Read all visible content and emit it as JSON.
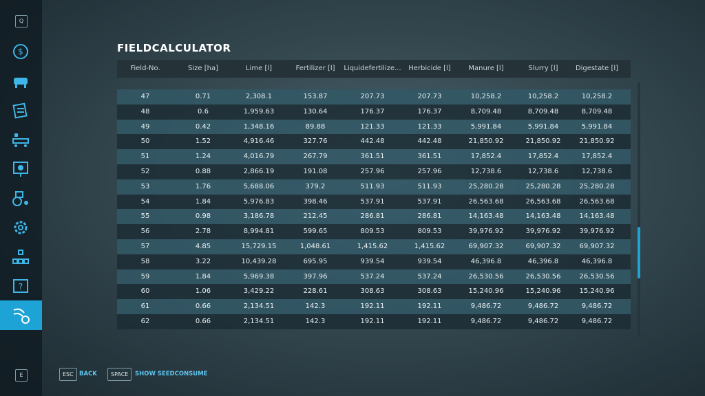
{
  "sidebar": {
    "top_key": "Q",
    "bottom_key": "E"
  },
  "header": {
    "title": "FIELDCALCULATOR"
  },
  "table": {
    "columns": [
      "Field-No.",
      "Size [ha]",
      "Lime [l]",
      "Fertilizer [l]",
      "Liquidefertilize...",
      "Herbicide [l]",
      "Manure [l]",
      "Slurry [l]",
      "Digestate [l]"
    ],
    "rows": [
      [
        "47",
        "0.71",
        "2,308.1",
        "153.87",
        "207.73",
        "207.73",
        "10,258.2",
        "10,258.2",
        "10,258.2"
      ],
      [
        "48",
        "0.6",
        "1,959.63",
        "130.64",
        "176.37",
        "176.37",
        "8,709.48",
        "8,709.48",
        "8,709.48"
      ],
      [
        "49",
        "0.42",
        "1,348.16",
        "89.88",
        "121.33",
        "121.33",
        "5,991.84",
        "5,991.84",
        "5,991.84"
      ],
      [
        "50",
        "1.52",
        "4,916.46",
        "327.76",
        "442.48",
        "442.48",
        "21,850.92",
        "21,850.92",
        "21,850.92"
      ],
      [
        "51",
        "1.24",
        "4,016.79",
        "267.79",
        "361.51",
        "361.51",
        "17,852.4",
        "17,852.4",
        "17,852.4"
      ],
      [
        "52",
        "0.88",
        "2,866.19",
        "191.08",
        "257.96",
        "257.96",
        "12,738.6",
        "12,738.6",
        "12,738.6"
      ],
      [
        "53",
        "1.76",
        "5,688.06",
        "379.2",
        "511.93",
        "511.93",
        "25,280.28",
        "25,280.28",
        "25,280.28"
      ],
      [
        "54",
        "1.84",
        "5,976.83",
        "398.46",
        "537.91",
        "537.91",
        "26,563.68",
        "26,563.68",
        "26,563.68"
      ],
      [
        "55",
        "0.98",
        "3,186.78",
        "212.45",
        "286.81",
        "286.81",
        "14,163.48",
        "14,163.48",
        "14,163.48"
      ],
      [
        "56",
        "2.78",
        "8,994.81",
        "599.65",
        "809.53",
        "809.53",
        "39,976.92",
        "39,976.92",
        "39,976.92"
      ],
      [
        "57",
        "4.85",
        "15,729.15",
        "1,048.61",
        "1,415.62",
        "1,415.62",
        "69,907.32",
        "69,907.32",
        "69,907.32"
      ],
      [
        "58",
        "3.22",
        "10,439.28",
        "695.95",
        "939.54",
        "939.54",
        "46,396.8",
        "46,396.8",
        "46,396.8"
      ],
      [
        "59",
        "1.84",
        "5,969.38",
        "397.96",
        "537.24",
        "537.24",
        "26,530.56",
        "26,530.56",
        "26,530.56"
      ],
      [
        "60",
        "1.06",
        "3,429.22",
        "228.61",
        "308.63",
        "308.63",
        "15,240.96",
        "15,240.96",
        "15,240.96"
      ],
      [
        "61",
        "0.66",
        "2,134.51",
        "142.3",
        "192.11",
        "192.11",
        "9,486.72",
        "9,486.72",
        "9,486.72"
      ],
      [
        "62",
        "0.66",
        "2,134.51",
        "142.3",
        "192.11",
        "192.11",
        "9,486.72",
        "9,486.72",
        "9,486.72"
      ]
    ]
  },
  "footer": {
    "buttons": [
      {
        "key": "ESC",
        "label": "BACK"
      },
      {
        "key": "SPACE",
        "label": "SHOW SEEDCONSUME"
      }
    ]
  }
}
